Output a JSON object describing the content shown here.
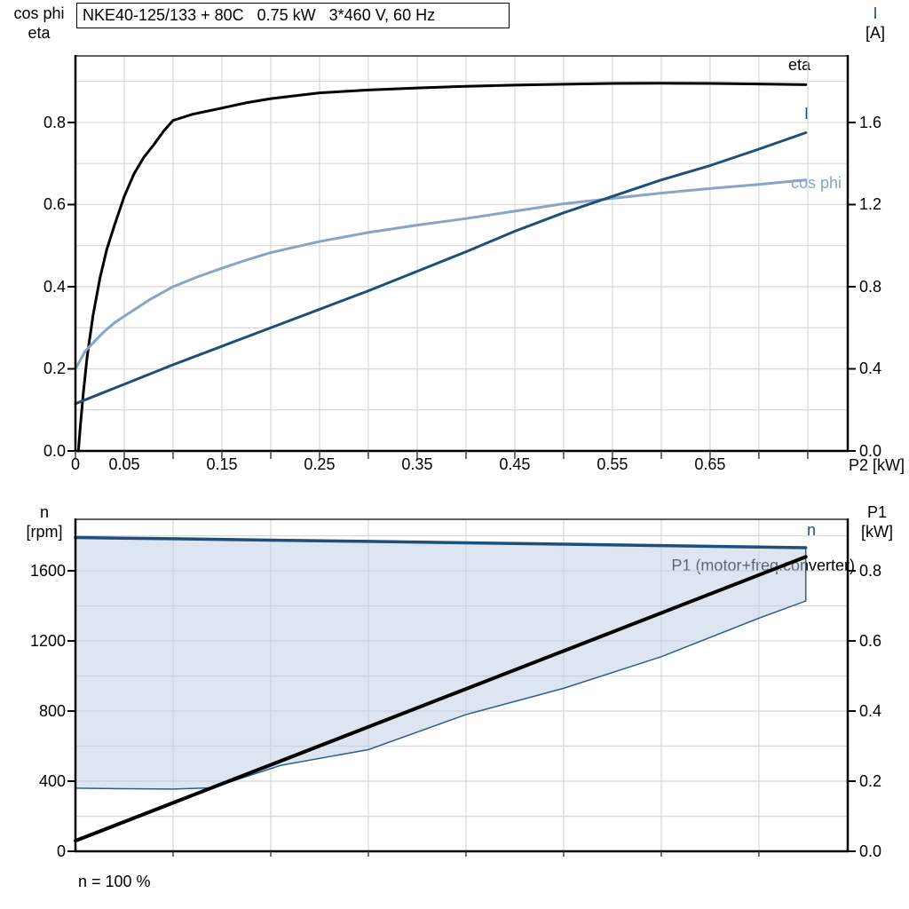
{
  "title": "NKE40-125/133 + 80C   0.75 kW   3*460 V, 60 Hz",
  "labels": {
    "top_left_line1": "cos phi",
    "top_left_line2": "eta",
    "top_right_line1": "I",
    "top_right_line2": "[A]",
    "curve_eta": "eta",
    "curve_I": "I",
    "curve_cosphi": "cos phi",
    "x_axis_title": "P2 [kW]",
    "bottom_left_line1": "n",
    "bottom_left_line2": "[rpm]",
    "bottom_right_line1": "P1",
    "bottom_right_line2": "[kW]",
    "curve_n": "n",
    "curve_p1": "P1 (motor+freq.converter)",
    "footnote": "n = 100 %"
  },
  "colors": {
    "black": "#000000",
    "navy": "#1f4e79",
    "steel_blue": "#88a4c6",
    "band_fill": "#b9cce2",
    "band_edge": "#2e5f8f",
    "grid": "#d8d8d8",
    "tick": "#444444"
  },
  "chart_data": [
    {
      "type": "line",
      "title": "NKE40-125/133 + 80C   0.75 kW   3*460 V, 60 Hz",
      "xlabel": "P2 [kW]",
      "xlim": [
        0,
        0.791
      ],
      "x_tick_labels": [
        {
          "v": 0,
          "t": "0"
        },
        {
          "v": 0.05,
          "t": "0.05"
        },
        {
          "v": 0.15,
          "t": "0.15"
        },
        {
          "v": 0.25,
          "t": "0.25"
        },
        {
          "v": 0.35,
          "t": "0.35"
        },
        {
          "v": 0.45,
          "t": "0.45"
        },
        {
          "v": 0.55,
          "t": "0.55"
        },
        {
          "v": 0.65,
          "t": "0.65"
        }
      ],
      "left_ylabel": "cos phi / eta",
      "left_ylim": [
        0,
        0.962
      ],
      "left_ticks": [
        {
          "v": 0.0,
          "t": "0.0"
        },
        {
          "v": 0.2,
          "t": "0.2"
        },
        {
          "v": 0.4,
          "t": "0.4"
        },
        {
          "v": 0.6,
          "t": "0.6"
        },
        {
          "v": 0.8,
          "t": "0.8"
        }
      ],
      "right_ylabel": "I [A]",
      "right_ylim": [
        0,
        1.924
      ],
      "right_ticks": [
        {
          "v": 0.0,
          "t": "0.0"
        },
        {
          "v": 0.4,
          "t": "0.4"
        },
        {
          "v": 0.8,
          "t": "0.8"
        },
        {
          "v": 1.2,
          "t": "1.2"
        },
        {
          "v": 1.6,
          "t": "1.6"
        }
      ],
      "grid": true,
      "series": [
        {
          "name": "eta",
          "axis": "left",
          "color": "#000000",
          "width": 3,
          "x": [
            0.003,
            0.005,
            0.008,
            0.012,
            0.018,
            0.025,
            0.032,
            0.04,
            0.05,
            0.06,
            0.07,
            0.08,
            0.09,
            0.1,
            0.12,
            0.15,
            0.175,
            0.2,
            0.25,
            0.3,
            0.35,
            0.4,
            0.45,
            0.5,
            0.55,
            0.6,
            0.65,
            0.7,
            0.748
          ],
          "y": [
            0.0,
            0.06,
            0.14,
            0.23,
            0.33,
            0.42,
            0.49,
            0.55,
            0.62,
            0.675,
            0.715,
            0.745,
            0.778,
            0.805,
            0.82,
            0.835,
            0.848,
            0.858,
            0.872,
            0.879,
            0.884,
            0.888,
            0.891,
            0.893,
            0.895,
            0.8955,
            0.895,
            0.8935,
            0.892
          ]
        },
        {
          "name": "cos phi",
          "axis": "left",
          "color": "#88a4c6",
          "width": 3,
          "x": [
            0,
            0.01,
            0.02,
            0.03,
            0.04,
            0.05,
            0.075,
            0.1,
            0.125,
            0.15,
            0.175,
            0.2,
            0.25,
            0.3,
            0.35,
            0.4,
            0.45,
            0.5,
            0.55,
            0.6,
            0.65,
            0.7,
            0.748
          ],
          "y": [
            0.2,
            0.243,
            0.268,
            0.292,
            0.312,
            0.328,
            0.367,
            0.4,
            0.424,
            0.445,
            0.465,
            0.483,
            0.51,
            0.532,
            0.55,
            0.566,
            0.584,
            0.602,
            0.615,
            0.628,
            0.639,
            0.649,
            0.66
          ]
        },
        {
          "name": "I",
          "axis": "right",
          "color": "#1f4e79",
          "width": 3,
          "x": [
            0,
            0.05,
            0.1,
            0.15,
            0.2,
            0.25,
            0.3,
            0.35,
            0.4,
            0.45,
            0.5,
            0.55,
            0.6,
            0.65,
            0.7,
            0.748
          ],
          "y": [
            0.23,
            0.325,
            0.42,
            0.51,
            0.6,
            0.69,
            0.78,
            0.875,
            0.97,
            1.07,
            1.16,
            1.24,
            1.32,
            1.39,
            1.47,
            1.55
          ]
        }
      ]
    },
    {
      "type": "line+band",
      "xlim": [
        0,
        0.791
      ],
      "left_ylabel": "n [rpm]",
      "left_ylim": [
        0,
        1894
      ],
      "left_ticks": [
        {
          "v": 0,
          "t": "0"
        },
        {
          "v": 400,
          "t": "400"
        },
        {
          "v": 800,
          "t": "800"
        },
        {
          "v": 1200,
          "t": "1200"
        },
        {
          "v": 1600,
          "t": "1600"
        }
      ],
      "right_ylabel": "P1 [kW]",
      "right_ylim": [
        0,
        0.947
      ],
      "right_ticks": [
        {
          "v": 0.0,
          "t": "0.0"
        },
        {
          "v": 0.2,
          "t": "0.2"
        },
        {
          "v": 0.4,
          "t": "0.4"
        },
        {
          "v": 0.6,
          "t": "0.6"
        },
        {
          "v": 0.8,
          "t": "0.8"
        }
      ],
      "grid": true,
      "footnote": "n = 100 %",
      "series": [
        {
          "name": "n",
          "axis": "left",
          "color": "#1f4e79",
          "width": 3.5,
          "x": [
            0,
            0.1,
            0.2,
            0.3,
            0.4,
            0.5,
            0.6,
            0.7,
            0.748
          ],
          "y": [
            1790,
            1783,
            1775,
            1768,
            1760,
            1752,
            1744,
            1736,
            1732
          ]
        },
        {
          "name": "n min",
          "axis": "left",
          "color": "#2e5f8f",
          "width": 1.5,
          "x": [
            0,
            0.05,
            0.1,
            0.14,
            0.21,
            0.3,
            0.4,
            0.5,
            0.6,
            0.7,
            0.748
          ],
          "y": [
            360,
            357,
            355,
            362,
            490,
            580,
            780,
            930,
            1110,
            1330,
            1428
          ]
        },
        {
          "name": "P1 (motor+freq.converter)",
          "axis": "right",
          "color": "#000000",
          "width": 4,
          "x": [
            0,
            0.748
          ],
          "y": [
            0.03,
            0.84
          ]
        }
      ],
      "band": {
        "between": [
          "n",
          "n min"
        ],
        "fill": "#b9cce2",
        "opacity": 0.5,
        "close_right": true
      }
    }
  ]
}
